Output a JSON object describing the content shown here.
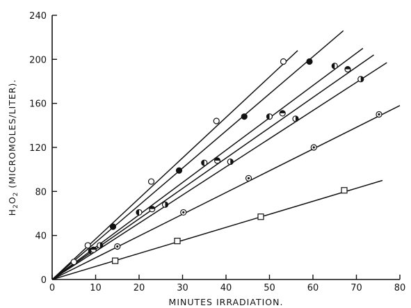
{
  "chart_data": {
    "type": "scatter",
    "title": "",
    "xlabel": "MINUTES IRRADIATION.",
    "ylabel": "H2O2 (MICROMOLES/LITER).",
    "ylabel_parts": {
      "h": "H",
      "sub1": "2",
      "o": "O",
      "sub2": "2",
      "rest": " (MICROMOLES/LITER)."
    },
    "xlim": [
      0,
      80
    ],
    "ylim": [
      0,
      240
    ],
    "xticks": [
      "0",
      "10",
      "20",
      "30",
      "40",
      "50",
      "60",
      "70",
      "80"
    ],
    "yticks": [
      "0",
      "40",
      "80",
      "120",
      "160",
      "200",
      "240"
    ],
    "grid": false,
    "legend": "none",
    "series": [
      {
        "marker": "circle-open",
        "points": [
          [
            5,
            16
          ],
          [
            8.2,
            31
          ],
          [
            22.8,
            89
          ],
          [
            37.8,
            144
          ],
          [
            53.2,
            198
          ]
        ],
        "fit": [
          [
            0,
            0
          ],
          [
            56.5,
            208
          ]
        ]
      },
      {
        "marker": "circle-filled",
        "points": [
          [
            14,
            48
          ],
          [
            29.2,
            99
          ],
          [
            44.2,
            148
          ],
          [
            59.2,
            198
          ]
        ],
        "fit": [
          [
            0,
            0
          ],
          [
            67,
            226
          ]
        ]
      },
      {
        "marker": "circle-half-left",
        "points": [
          [
            9,
            26
          ],
          [
            20,
            61
          ],
          [
            35,
            106
          ],
          [
            50,
            148
          ],
          [
            65,
            194
          ]
        ],
        "fit": [
          [
            0,
            0
          ],
          [
            71.5,
            210
          ]
        ]
      },
      {
        "marker": "circle-half-top",
        "points": [
          [
            9.5,
            27
          ],
          [
            23,
            64
          ],
          [
            38,
            108
          ],
          [
            53,
            151
          ],
          [
            68,
            191
          ]
        ],
        "fit": [
          [
            0,
            0
          ],
          [
            74,
            204
          ]
        ]
      },
      {
        "marker": "circle-half-right",
        "points": [
          [
            11,
            31
          ],
          [
            26,
            68
          ],
          [
            41,
            107
          ],
          [
            56,
            146
          ],
          [
            71,
            182
          ]
        ],
        "fit": [
          [
            0,
            0
          ],
          [
            77,
            197
          ]
        ]
      },
      {
        "marker": "circle-dot",
        "points": [
          [
            15,
            30
          ],
          [
            30.2,
            61
          ],
          [
            45.2,
            92
          ],
          [
            60.2,
            120
          ],
          [
            75.2,
            150
          ]
        ],
        "fit": [
          [
            0,
            0
          ],
          [
            80,
            158
          ]
        ]
      },
      {
        "marker": "square-open",
        "points": [
          [
            14.5,
            17
          ],
          [
            28.8,
            35
          ],
          [
            48,
            57
          ],
          [
            67.2,
            81
          ]
        ],
        "fit": [
          [
            0,
            0
          ],
          [
            76,
            90
          ]
        ]
      }
    ]
  }
}
